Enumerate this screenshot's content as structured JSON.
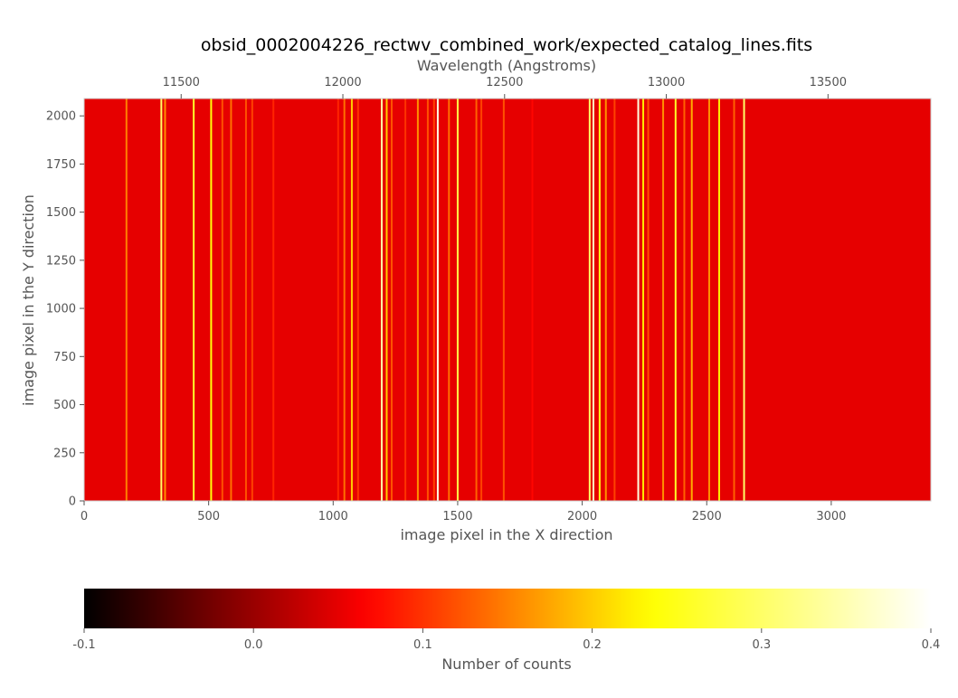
{
  "chart_data": {
    "type": "heatmap",
    "title": "obsid_0002004226_rectwv_combined_work/expected_catalog_lines.fits",
    "xlabel": "image pixel in the X direction",
    "ylabel": "image pixel in the Y direction",
    "top_xlabel": "Wavelength (Angstroms)",
    "xlim": [
      0,
      3400
    ],
    "ylim": [
      0,
      2090
    ],
    "x_ticks": [
      "0",
      "500",
      "1000",
      "1500",
      "2000",
      "2500",
      "3000"
    ],
    "y_ticks": [
      "0",
      "250",
      "500",
      "750",
      "1000",
      "1250",
      "1500",
      "1750",
      "2000"
    ],
    "wavelength_ticks": [
      "11500",
      "12000",
      "12500",
      "13000",
      "13500"
    ],
    "wavelength_axis": {
      "start_angstrom": 11200,
      "angstrom_per_pixel": 0.77
    },
    "background_value": 0.05,
    "lines": [
      {
        "x": 170,
        "value": 0.15
      },
      {
        "x": 310,
        "value": 0.3
      },
      {
        "x": 325,
        "value": 0.16
      },
      {
        "x": 440,
        "value": 0.26
      },
      {
        "x": 510,
        "value": 0.24
      },
      {
        "x": 555,
        "value": 0.12
      },
      {
        "x": 590,
        "value": 0.14
      },
      {
        "x": 650,
        "value": 0.12
      },
      {
        "x": 675,
        "value": 0.11
      },
      {
        "x": 760,
        "value": 0.09
      },
      {
        "x": 1020,
        "value": 0.09
      },
      {
        "x": 1045,
        "value": 0.14
      },
      {
        "x": 1075,
        "value": 0.2
      },
      {
        "x": 1100,
        "value": 0.1
      },
      {
        "x": 1195,
        "value": 0.34
      },
      {
        "x": 1215,
        "value": 0.2
      },
      {
        "x": 1235,
        "value": 0.12
      },
      {
        "x": 1290,
        "value": 0.1
      },
      {
        "x": 1340,
        "value": 0.16
      },
      {
        "x": 1380,
        "value": 0.12
      },
      {
        "x": 1405,
        "value": 0.11
      },
      {
        "x": 1420,
        "value": 0.38
      },
      {
        "x": 1465,
        "value": 0.14
      },
      {
        "x": 1500,
        "value": 0.28
      },
      {
        "x": 1575,
        "value": 0.13
      },
      {
        "x": 1595,
        "value": 0.11
      },
      {
        "x": 1685,
        "value": 0.12
      },
      {
        "x": 1800,
        "value": 0.07
      },
      {
        "x": 2030,
        "value": 0.3
      },
      {
        "x": 2045,
        "value": 0.36
      },
      {
        "x": 2070,
        "value": 0.25
      },
      {
        "x": 2095,
        "value": 0.16
      },
      {
        "x": 2130,
        "value": 0.11
      },
      {
        "x": 2225,
        "value": 0.38
      },
      {
        "x": 2245,
        "value": 0.22
      },
      {
        "x": 2265,
        "value": 0.12
      },
      {
        "x": 2325,
        "value": 0.16
      },
      {
        "x": 2375,
        "value": 0.26
      },
      {
        "x": 2410,
        "value": 0.13
      },
      {
        "x": 2440,
        "value": 0.18
      },
      {
        "x": 2510,
        "value": 0.16
      },
      {
        "x": 2550,
        "value": 0.22
      },
      {
        "x": 2610,
        "value": 0.13
      },
      {
        "x": 2650,
        "value": 0.3
      }
    ],
    "colorbar": {
      "label": "Number of counts",
      "vmin": -0.1,
      "vmax": 0.4,
      "ticks": [
        "-0.1",
        "0.0",
        "0.1",
        "0.2",
        "0.3",
        "0.4"
      ],
      "colormap": [
        "#000000",
        "#ff0000",
        "#ffff00",
        "#ffffff"
      ]
    },
    "grid": false
  }
}
